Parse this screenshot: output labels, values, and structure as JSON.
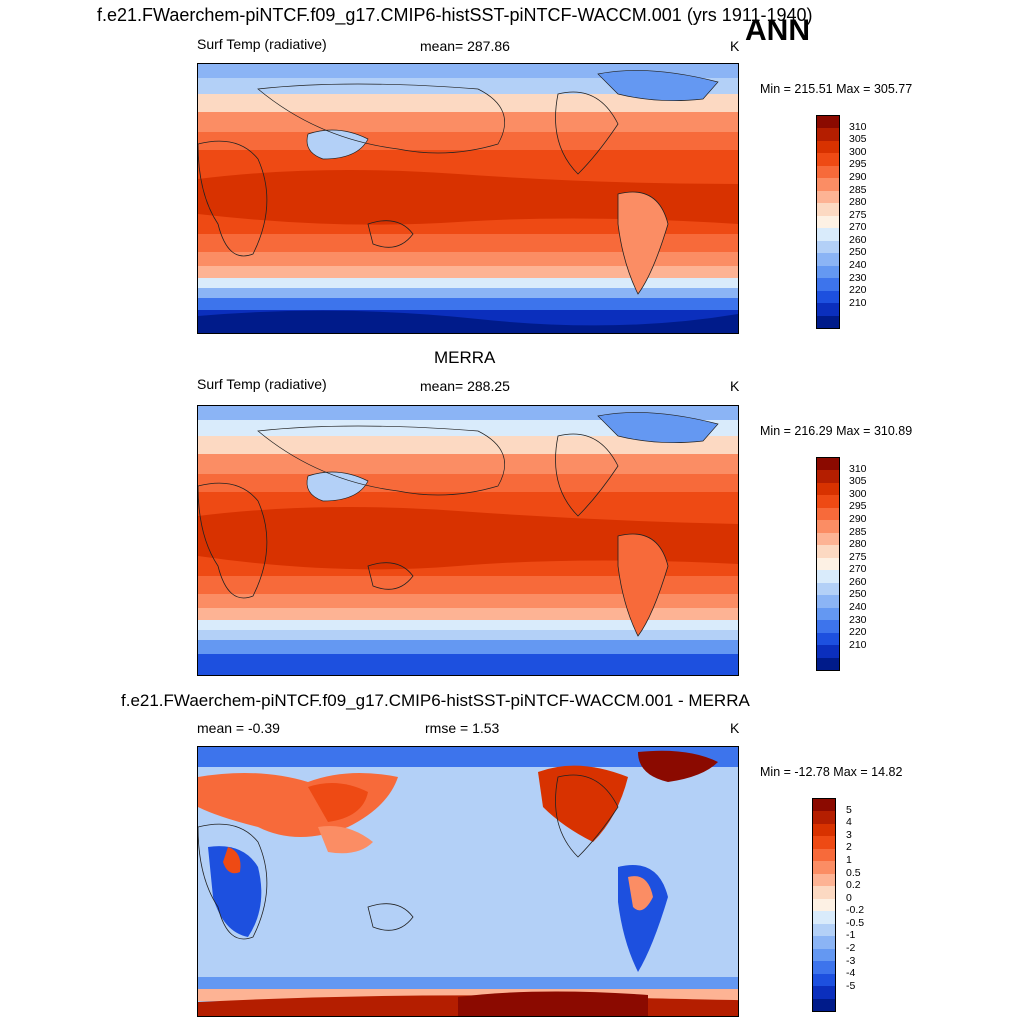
{
  "header": {
    "title": "f.e21.FWaerchem-piNTCF.f09_g17.CMIP6-histSST-piNTCF-WACCM.001 (yrs 1911-1940)",
    "season": "ANN"
  },
  "panels": [
    {
      "title": "",
      "left_label": "Surf Temp (radiative)",
      "center_label": "mean= 287.86",
      "units": "K",
      "minmax": "Min = 215.51 Max = 305.77",
      "colorbar": {
        "labels": [
          "310",
          "305",
          "300",
          "295",
          "290",
          "285",
          "280",
          "275",
          "270",
          "260",
          "250",
          "240",
          "230",
          "220",
          "210"
        ],
        "colors": [
          "#8b0a00",
          "#b41e00",
          "#d83200",
          "#ee4a14",
          "#f76a3a",
          "#fb8d64",
          "#fdb394",
          "#fcd9c2",
          "#fdf1e4",
          "#d9ebfb",
          "#b3d0f7",
          "#8bb4f5",
          "#6498f2",
          "#3d74ec",
          "#1d50df",
          "#0b2fbd",
          "#001b8a"
        ]
      }
    },
    {
      "title": "MERRA",
      "left_label": "Surf Temp (radiative)",
      "center_label": "mean= 288.25",
      "units": "K",
      "minmax": "Min = 216.29 Max = 310.89",
      "colorbar": {
        "labels": [
          "310",
          "305",
          "300",
          "295",
          "290",
          "285",
          "280",
          "275",
          "270",
          "260",
          "250",
          "240",
          "230",
          "220",
          "210"
        ],
        "colors": [
          "#8b0a00",
          "#b41e00",
          "#d83200",
          "#ee4a14",
          "#f76a3a",
          "#fb8d64",
          "#fdb394",
          "#fcd9c2",
          "#fdf1e4",
          "#d9ebfb",
          "#b3d0f7",
          "#8bb4f5",
          "#6498f2",
          "#3d74ec",
          "#1d50df",
          "#0b2fbd",
          "#001b8a"
        ]
      }
    },
    {
      "title": "f.e21.FWaerchem-piNTCF.f09_g17.CMIP6-histSST-piNTCF-WACCM.001 - MERRA",
      "left_label": "mean =  -0.39",
      "center_label": "rmse =   1.53",
      "units": "K",
      "minmax": "Min = -12.78 Max =  14.82",
      "colorbar": {
        "labels": [
          "5",
          "4",
          "3",
          "2",
          "1",
          "0.5",
          "0.2",
          "0",
          "-0.2",
          "-0.5",
          "-1",
          "-2",
          "-3",
          "-4",
          "-5"
        ],
        "colors": [
          "#8b0a00",
          "#b41e00",
          "#d83200",
          "#ee4a14",
          "#f76a3a",
          "#fb8d64",
          "#fdb394",
          "#fcd9c2",
          "#fdf1e4",
          "#d9ebfb",
          "#b3d0f7",
          "#8bb4f5",
          "#6498f2",
          "#3d74ec",
          "#1d50df",
          "#0b2fbd",
          "#001b8a"
        ]
      }
    }
  ]
}
